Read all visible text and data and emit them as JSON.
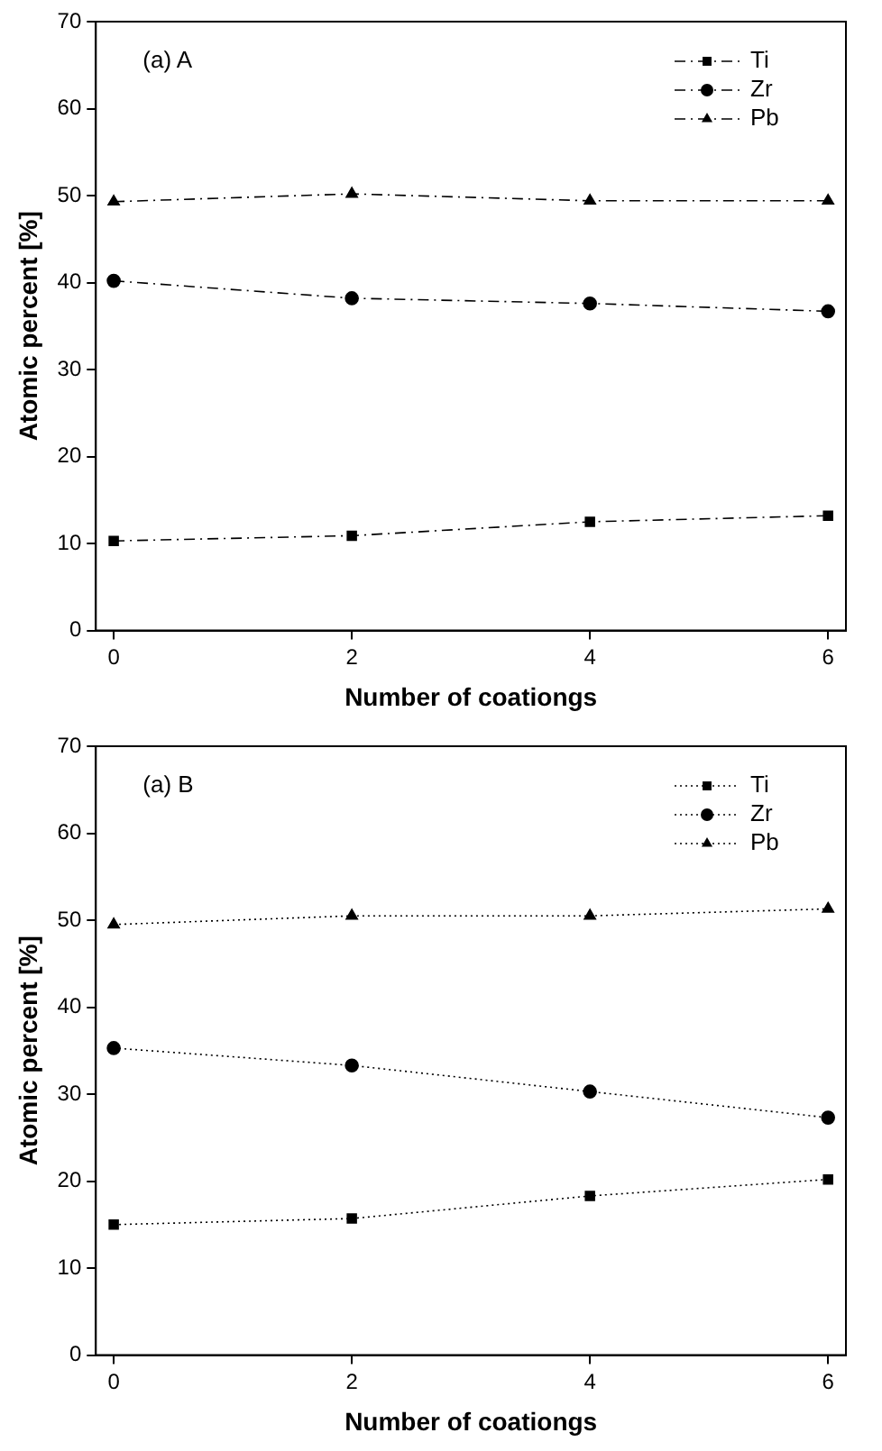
{
  "chart_data": [
    {
      "type": "line",
      "x": [
        0,
        2,
        4,
        6
      ],
      "xlim": [
        -0.15,
        6.15
      ],
      "xticks": [
        0,
        2,
        4,
        6
      ],
      "ylim": [
        0,
        70
      ],
      "yticks": [
        0,
        10,
        20,
        30,
        40,
        50,
        60,
        70
      ],
      "xlabel": "Number of coationgs",
      "ylabel": "Atomic percent [%]",
      "annotations": [
        "(a) A"
      ],
      "legend": "top right",
      "grid": false,
      "line_style": "dashed",
      "series": [
        {
          "name": "Ti",
          "color": "#000000",
          "marker": "square",
          "values": [
            10.3,
            10.9,
            12.5,
            13.2
          ]
        },
        {
          "name": "Zr",
          "color": "#000000",
          "marker": "circle",
          "values": [
            40.2,
            38.2,
            37.6,
            36.7
          ]
        },
        {
          "name": "Pb",
          "color": "#000000",
          "marker": "triangle",
          "values": [
            49.3,
            50.2,
            49.4,
            49.4
          ]
        }
      ]
    },
    {
      "type": "line",
      "x": [
        0,
        2,
        4,
        6
      ],
      "xlim": [
        -0.15,
        6.15
      ],
      "xticks": [
        0,
        2,
        4,
        6
      ],
      "ylim": [
        0,
        70
      ],
      "yticks": [
        0,
        10,
        20,
        30,
        40,
        50,
        60,
        70
      ],
      "xlabel": "Number of coationgs",
      "ylabel": "Atomic percent [%]",
      "annotations": [
        "(a) B"
      ],
      "legend": "top right",
      "grid": false,
      "line_style": "dotted",
      "series": [
        {
          "name": "Ti",
          "color": "#000000",
          "marker": "square",
          "values": [
            15.0,
            15.7,
            18.3,
            20.2
          ]
        },
        {
          "name": "Zr",
          "color": "#000000",
          "marker": "circle",
          "values": [
            35.3,
            33.3,
            30.3,
            27.3
          ]
        },
        {
          "name": "Pb",
          "color": "#000000",
          "marker": "triangle",
          "values": [
            49.5,
            50.5,
            50.5,
            51.3
          ]
        }
      ]
    }
  ]
}
